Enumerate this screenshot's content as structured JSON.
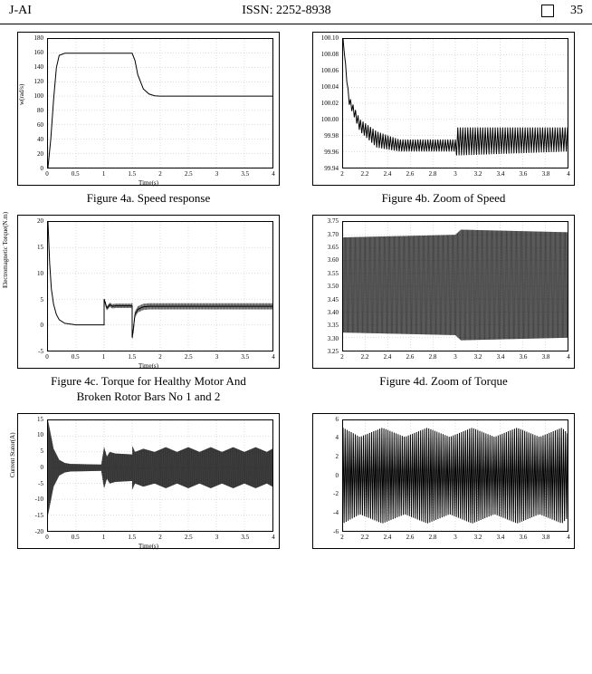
{
  "header": {
    "left": "J-AI",
    "issn": "ISSN: 2252-8938",
    "page": "35"
  },
  "captions": {
    "c4a": "Figure 4a. Speed response",
    "c4b": "Figure 4b. Zoom of Speed",
    "c4c1": "Figure 4c. Torque for Healthy Motor And",
    "c4c2": "Broken Rotor Bars No 1 and 2",
    "c4d": "Figure 4d. Zoom of Torque"
  },
  "chart4a": {
    "xlabel": "Time(s)",
    "ylabel": "w(rad/s)",
    "xmin": 0,
    "xmax": 4,
    "xstep": 0.5,
    "ymin": 0,
    "ymax": 180,
    "ystep": 20,
    "series": [
      [
        0,
        0
      ],
      [
        0.05,
        40
      ],
      [
        0.1,
        95
      ],
      [
        0.15,
        140
      ],
      [
        0.2,
        157
      ],
      [
        0.3,
        160
      ],
      [
        1.5,
        160
      ],
      [
        1.55,
        150
      ],
      [
        1.6,
        130
      ],
      [
        1.7,
        110
      ],
      [
        1.8,
        103
      ],
      [
        1.9,
        100.5
      ],
      [
        2.0,
        100
      ],
      [
        4,
        100
      ]
    ]
  },
  "chart4b": {
    "xlabel": "",
    "ylabel": "",
    "xmin": 2,
    "xmax": 4,
    "xstep": 0.2,
    "ymin": 99.94,
    "ymax": 100.1,
    "ystep": 0.02,
    "env_hi": [
      [
        2,
        100.1
      ],
      [
        2.05,
        100.03
      ],
      [
        2.15,
        100.0
      ],
      [
        2.3,
        99.985
      ],
      [
        2.5,
        99.975
      ],
      [
        3.0,
        99.975
      ],
      [
        3.0,
        99.99
      ],
      [
        4.0,
        99.99
      ]
    ],
    "env_lo": [
      [
        2,
        100.1
      ],
      [
        2.05,
        100.02
      ],
      [
        2.15,
        99.985
      ],
      [
        2.3,
        99.965
      ],
      [
        2.5,
        99.96
      ],
      [
        3.0,
        99.96
      ],
      [
        3.0,
        99.955
      ],
      [
        4.0,
        99.96
      ]
    ],
    "osc_start": 2.0,
    "osc_end": 4.0,
    "osc_n": 180
  },
  "chart4c": {
    "xlabel": "Time(s)",
    "ylabel": "Electromagnetic Torque(N.m)",
    "xmin": 0,
    "xmax": 4,
    "xstep": 0.5,
    "ymin": -5,
    "ymax": 20,
    "ystep": 5,
    "base": [
      [
        0,
        20
      ],
      [
        0.03,
        12
      ],
      [
        0.06,
        7
      ],
      [
        0.1,
        4
      ],
      [
        0.15,
        2
      ],
      [
        0.2,
        1
      ],
      [
        0.3,
        0.3
      ],
      [
        0.5,
        0
      ],
      [
        1.0,
        0
      ],
      [
        1.0,
        5
      ],
      [
        1.05,
        3.2
      ],
      [
        1.1,
        3.9
      ],
      [
        1.15,
        3.6
      ],
      [
        1.2,
        3.7
      ],
      [
        1.5,
        3.7
      ],
      [
        1.5,
        -2.5
      ],
      [
        1.52,
        -1
      ],
      [
        1.55,
        2
      ],
      [
        1.6,
        3
      ],
      [
        1.7,
        3.5
      ],
      [
        1.8,
        3.6
      ],
      [
        4,
        3.6
      ]
    ],
    "noise_amp": 0.6,
    "noise_start": 1.0,
    "noise_end": 4.0,
    "noise_n": 480
  },
  "chart4d": {
    "xlabel": "",
    "ylabel": "",
    "xmin": 2,
    "xmax": 4,
    "xstep": 0.2,
    "ymin": 3.25,
    "ymax": 3.75,
    "ystep": 0.05,
    "env_hi": [
      [
        2,
        3.69
      ],
      [
        3,
        3.7
      ],
      [
        3.05,
        3.72
      ],
      [
        4,
        3.71
      ]
    ],
    "env_lo": [
      [
        2,
        3.32
      ],
      [
        3,
        3.31
      ],
      [
        3.05,
        3.29
      ],
      [
        4,
        3.3
      ]
    ],
    "osc_n": 900
  },
  "chart4e": {
    "xlabel": "Time(s)",
    "ylabel": "Current Stator(A)",
    "xmin": 0,
    "xmax": 4,
    "xstep": 0.5,
    "ymin": -20,
    "ymax": 15,
    "ystep": 5,
    "env_hi": [
      [
        0,
        15
      ],
      [
        0.1,
        6
      ],
      [
        0.2,
        2.5
      ],
      [
        0.3,
        1.5
      ],
      [
        0.4,
        1.2
      ],
      [
        0.95,
        1.0
      ],
      [
        1.0,
        6.5
      ],
      [
        1.05,
        3.5
      ],
      [
        1.1,
        5
      ],
      [
        1.2,
        4.5
      ],
      [
        1.5,
        4.2
      ],
      [
        1.5,
        7
      ],
      [
        1.55,
        5
      ],
      [
        1.7,
        6
      ],
      [
        1.9,
        5
      ],
      [
        2.1,
        6.5
      ],
      [
        2.3,
        5
      ],
      [
        2.5,
        6.5
      ],
      [
        2.7,
        5
      ],
      [
        2.9,
        6.5
      ],
      [
        3.1,
        5
      ],
      [
        3.3,
        6.5
      ],
      [
        3.5,
        5
      ],
      [
        3.7,
        6.5
      ],
      [
        3.9,
        5
      ],
      [
        4,
        6
      ]
    ],
    "env_lo": [
      [
        0,
        -15
      ],
      [
        0.1,
        -6
      ],
      [
        0.2,
        -2.5
      ],
      [
        0.3,
        -1.5
      ],
      [
        0.4,
        -1.2
      ],
      [
        0.95,
        -1.0
      ],
      [
        1.0,
        -6.5
      ],
      [
        1.05,
        -3.5
      ],
      [
        1.1,
        -5
      ],
      [
        1.2,
        -4.5
      ],
      [
        1.5,
        -4.2
      ],
      [
        1.5,
        -7
      ],
      [
        1.55,
        -5
      ],
      [
        1.7,
        -6
      ],
      [
        1.9,
        -5
      ],
      [
        2.1,
        -6.5
      ],
      [
        2.3,
        -5
      ],
      [
        2.5,
        -6.5
      ],
      [
        2.7,
        -5
      ],
      [
        2.9,
        -6.5
      ],
      [
        3.1,
        -5
      ],
      [
        3.3,
        -6.5
      ],
      [
        3.5,
        -5
      ],
      [
        3.7,
        -6.5
      ],
      [
        3.9,
        -5
      ],
      [
        4,
        -6
      ]
    ],
    "osc_n": 1200
  },
  "chart4f": {
    "xlabel": "",
    "ylabel": "",
    "xmin": 2,
    "xmax": 4,
    "xstep": 0.2,
    "ymin": -6,
    "ymax": 6,
    "ystep": 2,
    "env_hi": [
      [
        2,
        5.2
      ],
      [
        2.15,
        4.2
      ],
      [
        2.35,
        5.2
      ],
      [
        2.55,
        4.2
      ],
      [
        2.75,
        5.2
      ],
      [
        2.95,
        4.2
      ],
      [
        3.15,
        5.2
      ],
      [
        3.35,
        4.2
      ],
      [
        3.55,
        5.2
      ],
      [
        3.75,
        4.2
      ],
      [
        3.95,
        5.2
      ],
      [
        4,
        4.6
      ]
    ],
    "env_lo": [
      [
        2,
        -5.2
      ],
      [
        2.15,
        -4.2
      ],
      [
        2.35,
        -5.2
      ],
      [
        2.55,
        -4.2
      ],
      [
        2.75,
        -5.2
      ],
      [
        2.95,
        -4.2
      ],
      [
        3.15,
        -5.2
      ],
      [
        3.35,
        -4.2
      ],
      [
        3.55,
        -5.2
      ],
      [
        3.75,
        -4.2
      ],
      [
        3.95,
        -5.2
      ],
      [
        4,
        -4.6
      ]
    ],
    "osc_n": 220
  }
}
